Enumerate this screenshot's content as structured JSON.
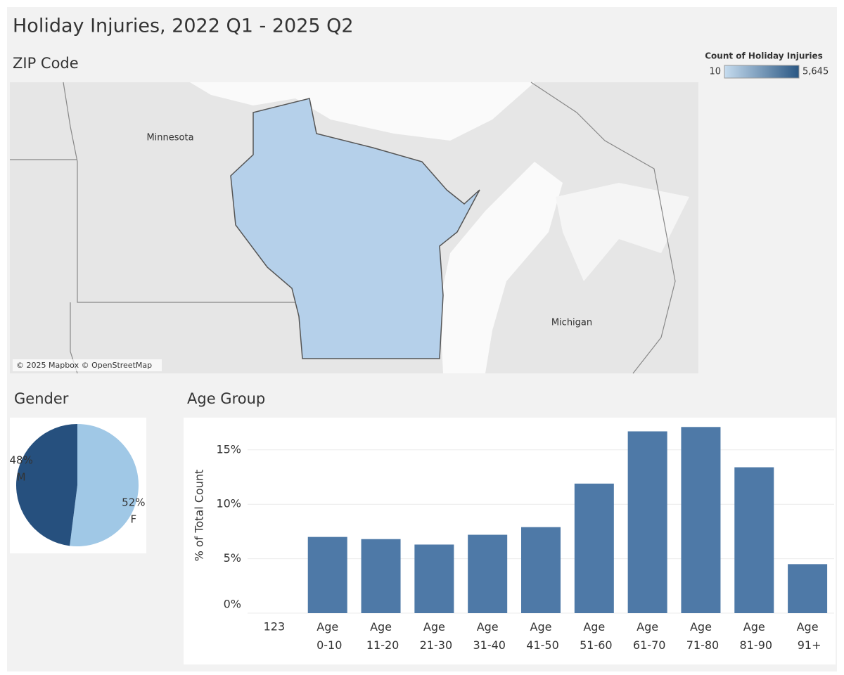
{
  "title": "Holiday Injuries, 2022 Q1 - 2025 Q2",
  "chart_data": [
    {
      "type": "map",
      "title": "ZIP Code",
      "legend_title": "Count of Holiday Injuries",
      "color_scale": [
        {
          "value": 10,
          "label": "10",
          "color": "#c6dcef"
        },
        {
          "value": 5645,
          "label": "5,645",
          "color": "#2a5783"
        }
      ],
      "places": [
        "Minnesota",
        "Michigan"
      ],
      "attribution": "© 2025 Mapbox © OpenStreetMap"
    },
    {
      "type": "pie",
      "title": "Gender",
      "categories": [
        "F",
        "M"
      ],
      "values": [
        52,
        48
      ],
      "value_labels": [
        "52%",
        "48%"
      ],
      "colors": [
        "#a0c8e6",
        "#26507e"
      ]
    },
    {
      "type": "bar",
      "title": "Age Group",
      "y_label": "% of Total Count",
      "color": "#4e79a7",
      "categories": [
        "123",
        "Age 0-10",
        "Age 11-20",
        "Age 21-30",
        "Age 31-40",
        "Age 41-50",
        "Age 51-60",
        "Age 61-70",
        "Age 71-80",
        "Age 81-90",
        "Age 91+"
      ],
      "values": [
        0,
        7.0,
        6.8,
        6.3,
        7.2,
        7.9,
        11.9,
        16.7,
        17.1,
        13.4,
        4.5
      ],
      "ylim": [
        0,
        17.7
      ],
      "yticks": [
        {
          "value": 0,
          "label": "0%"
        },
        {
          "value": 5,
          "label": "5%"
        },
        {
          "value": 10,
          "label": "10%"
        },
        {
          "value": 15,
          "label": "15%"
        }
      ],
      "grid": true
    }
  ]
}
